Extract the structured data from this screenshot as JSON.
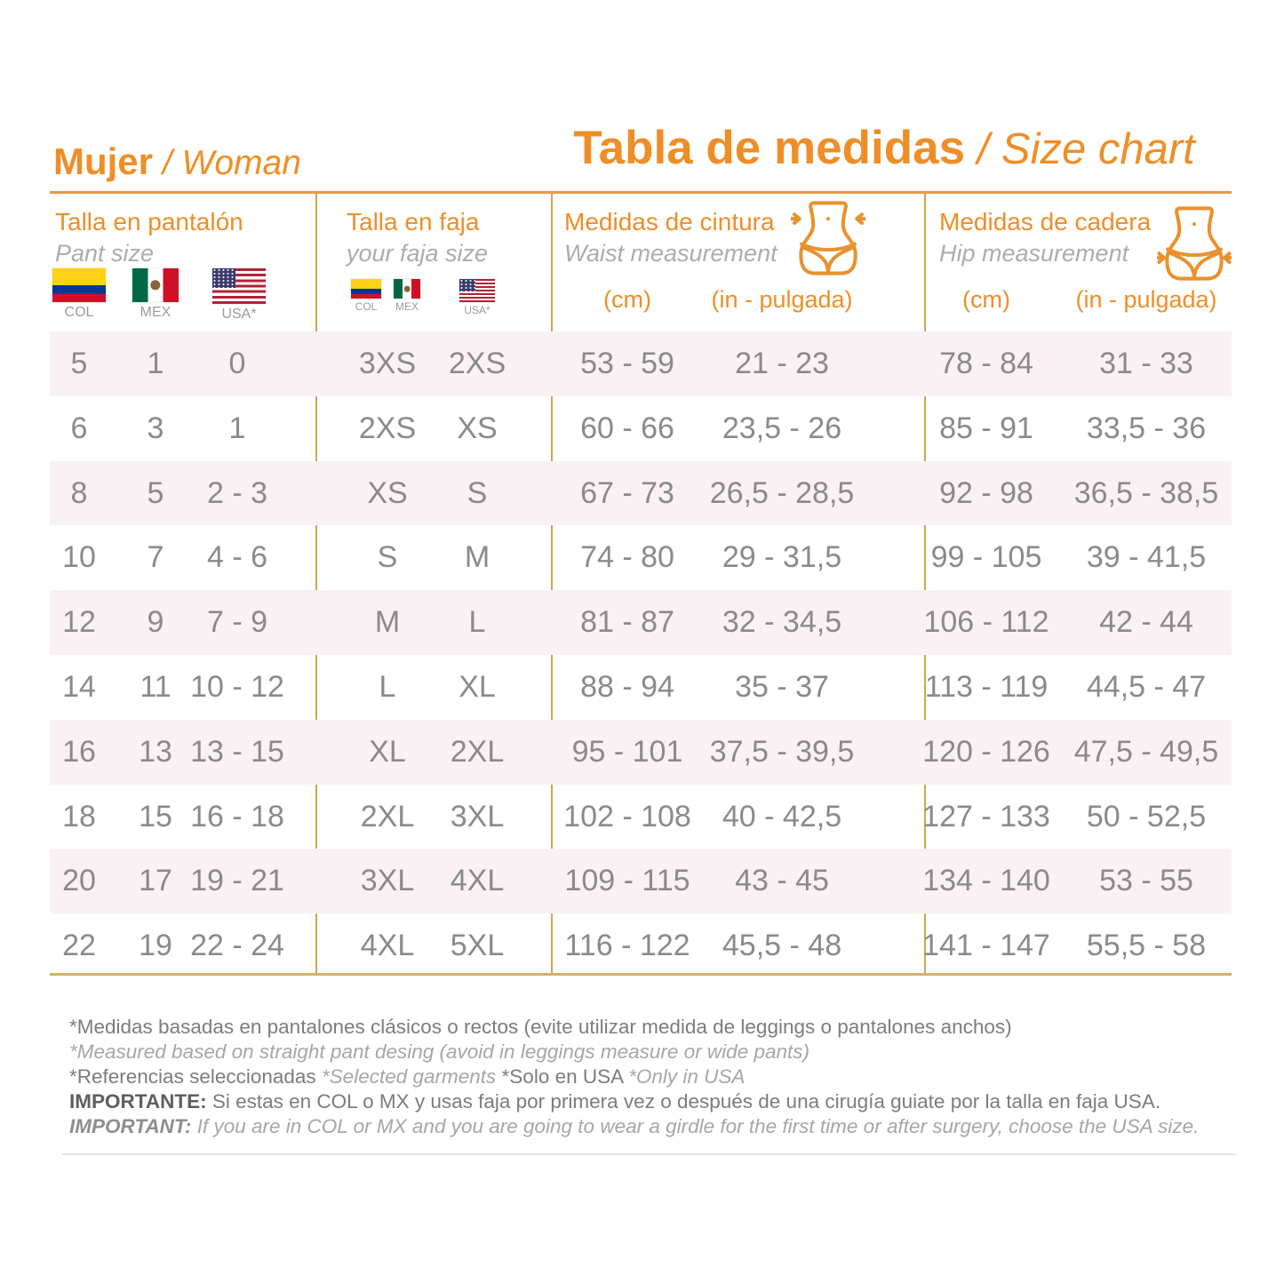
{
  "colors": {
    "accent_orange": "#EF8E27",
    "border_tan": "#D7A14D",
    "row_pink": "#FAF1F5",
    "value_gray": "#8A8A8A"
  },
  "titles": {
    "left_bold": "Mujer",
    "left_italic": " / Woman",
    "main_bold": "Tabla de medidas",
    "main_italic": " / Size chart"
  },
  "columns": {
    "pant": {
      "title": "Talla en pantalón",
      "subtitle": "Pant size",
      "flags": [
        {
          "icon": "colombia-flag-icon",
          "label": "COL"
        },
        {
          "icon": "mexico-flag-icon",
          "label": "MEX"
        },
        {
          "icon": "usa-flag-icon",
          "label": "USA*"
        }
      ]
    },
    "faja": {
      "title": "Talla en faja",
      "subtitle": "your faja size",
      "flags": [
        {
          "icon": "colombia-flag-icon",
          "label": "COL"
        },
        {
          "icon": "mexico-flag-icon",
          "label": "MEX"
        },
        {
          "icon": "usa-flag-icon",
          "label": "USA*"
        }
      ]
    },
    "waist": {
      "title": "Medidas de cintura",
      "subtitle": "Waist measurement",
      "icon": "waist-measure-icon",
      "units": [
        "(cm)",
        "(in - pulgada)"
      ]
    },
    "hip": {
      "title": "Medidas de cadera",
      "subtitle": "Hip measurement",
      "icon": "hip-measure-icon",
      "units": [
        "(cm)",
        "(in - pulgada)"
      ]
    }
  },
  "rows": [
    {
      "pant": [
        "5",
        "1",
        "0"
      ],
      "faja": [
        "3XS",
        "2XS"
      ],
      "waist_cm": "53 - 59",
      "waist_in": "21 - 23",
      "hip_cm": "78 - 84",
      "hip_in": "31 - 33"
    },
    {
      "pant": [
        "6",
        "3",
        "1"
      ],
      "faja": [
        "2XS",
        "XS"
      ],
      "waist_cm": "60 - 66",
      "waist_in": "23,5 - 26",
      "hip_cm": "85 - 91",
      "hip_in": "33,5 - 36"
    },
    {
      "pant": [
        "8",
        "5",
        "2 - 3"
      ],
      "faja": [
        "XS",
        "S"
      ],
      "waist_cm": "67 - 73",
      "waist_in": "26,5 - 28,5",
      "hip_cm": "92 - 98",
      "hip_in": "36,5 - 38,5"
    },
    {
      "pant": [
        "10",
        "7",
        "4 - 6"
      ],
      "faja": [
        "S",
        "M"
      ],
      "waist_cm": "74 - 80",
      "waist_in": "29 - 31,5",
      "hip_cm": "99 - 105",
      "hip_in": "39 - 41,5"
    },
    {
      "pant": [
        "12",
        "9",
        "7 - 9"
      ],
      "faja": [
        "M",
        "L"
      ],
      "waist_cm": "81 - 87",
      "waist_in": "32 - 34,5",
      "hip_cm": "106 - 112",
      "hip_in": "42 - 44"
    },
    {
      "pant": [
        "14",
        "11",
        "10 - 12"
      ],
      "faja": [
        "L",
        "XL"
      ],
      "waist_cm": "88 - 94",
      "waist_in": "35 - 37",
      "hip_cm": "113 - 119",
      "hip_in": "44,5 - 47"
    },
    {
      "pant": [
        "16",
        "13",
        "13 - 15"
      ],
      "faja": [
        "XL",
        "2XL"
      ],
      "waist_cm": "95 - 101",
      "waist_in": "37,5 - 39,5",
      "hip_cm": "120 - 126",
      "hip_in": "47,5 - 49,5"
    },
    {
      "pant": [
        "18",
        "15",
        "16 - 18"
      ],
      "faja": [
        "2XL",
        "3XL"
      ],
      "waist_cm": "102 - 108",
      "waist_in": "40 - 42,5",
      "hip_cm": "127 - 133",
      "hip_in": "50 - 52,5"
    },
    {
      "pant": [
        "20",
        "17",
        "19 - 21"
      ],
      "faja": [
        "3XL",
        "4XL"
      ],
      "waist_cm": "109 - 115",
      "waist_in": "43 - 45",
      "hip_cm": "134 - 140",
      "hip_in": "53 - 55"
    },
    {
      "pant": [
        "22",
        "19",
        "22 - 24"
      ],
      "faja": [
        "4XL",
        "5XL"
      ],
      "waist_cm": "116 - 122",
      "waist_in": "45,5 - 48",
      "hip_cm": "141 - 147",
      "hip_in": "55,5 - 58"
    }
  ],
  "notes": [
    {
      "segments": [
        {
          "style": "regular",
          "text": "*Medidas basadas en pantalones clásicos o rectos (evite utilizar medida de leggings o pantalones anchos)"
        }
      ]
    },
    {
      "segments": [
        {
          "style": "italic",
          "text": "*Measured based on straight pant desing (avoid in leggings measure or wide pants)"
        }
      ]
    },
    {
      "segments": [
        {
          "style": "regular",
          "text": "*Referencias seleccionadas "
        },
        {
          "style": "italic",
          "text": "*Selected garments "
        },
        {
          "style": "regular",
          "text": "*Solo en USA "
        },
        {
          "style": "italic",
          "text": "*Only in USA"
        }
      ]
    },
    {
      "segments": [
        {
          "style": "bold",
          "text": "IMPORTANTE: "
        },
        {
          "style": "regular",
          "text": "Si estas en COL o MX y usas faja por primera vez o después de una cirugía guiate por la talla en faja USA."
        }
      ]
    },
    {
      "segments": [
        {
          "style": "bold-italic",
          "text": "IMPORTANT: "
        },
        {
          "style": "italic",
          "text": "If you are in COL or MX and you are going to wear a girdle for the first time or after surgery, choose the USA size."
        }
      ]
    }
  ]
}
